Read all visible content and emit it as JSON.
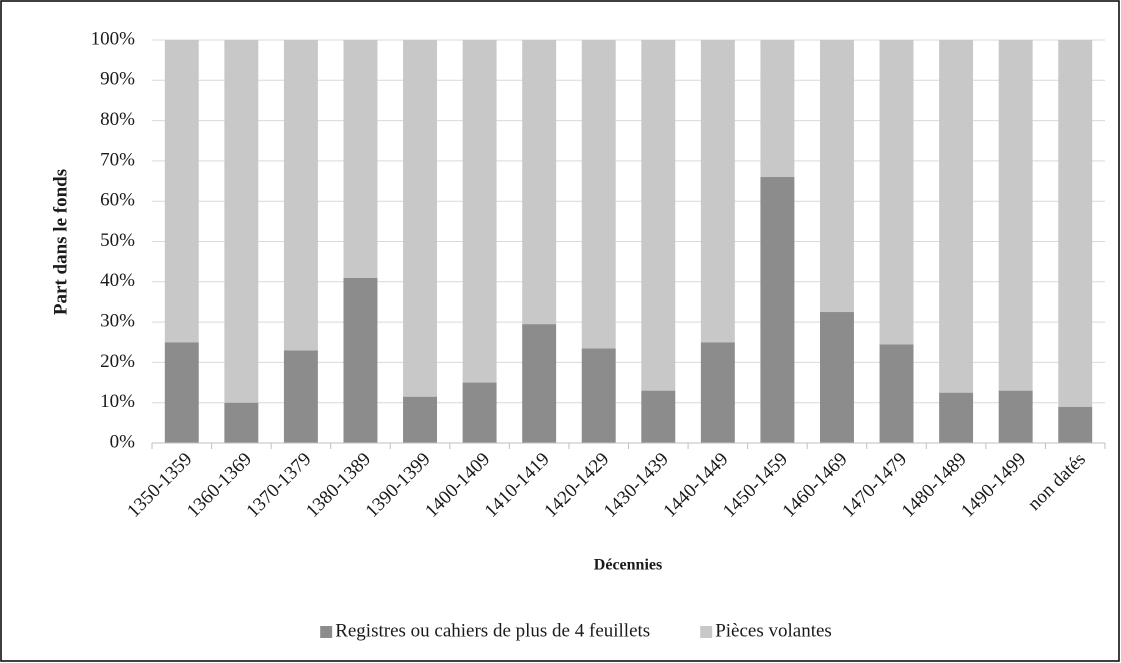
{
  "chart_data": {
    "type": "stacked_bar",
    "x_label": "Décennies",
    "y_label": "Part dans le fonds",
    "categories": [
      "1350-1359",
      "1360-1369",
      "1370-1379",
      "1380-1389",
      "1390-1399",
      "1400-1409",
      "1410-1419",
      "1420-1429",
      "1430-1439",
      "1440-1449",
      "1450-1459",
      "1460-1469",
      "1470-1479",
      "1480-1489",
      "1490-1499",
      "non datés"
    ],
    "series": [
      {
        "name": "Registres ou cahiers de plus de 4 feuillets",
        "color": "#8c8c8c",
        "values": [
          25,
          10,
          23,
          41,
          11.5,
          15,
          29.5,
          23.5,
          13,
          25,
          66,
          32.5,
          24.5,
          12.5,
          13,
          9
        ]
      },
      {
        "name": "Pièces volantes",
        "color": "#c8c8c8",
        "values": [
          75,
          90,
          77,
          59,
          88.5,
          85,
          70.5,
          76.5,
          87,
          75,
          34,
          67.5,
          75.5,
          87.5,
          87,
          91
        ]
      }
    ],
    "ylim": [
      0,
      100
    ],
    "yticks": [
      {
        "value": 0,
        "label": "0%"
      },
      {
        "value": 10,
        "label": "10%"
      },
      {
        "value": 20,
        "label": "20%"
      },
      {
        "value": 30,
        "label": "30%"
      },
      {
        "value": 40,
        "label": "40%"
      },
      {
        "value": 50,
        "label": "50%"
      },
      {
        "value": 60,
        "label": "60%"
      },
      {
        "value": 70,
        "label": "70%"
      },
      {
        "value": 80,
        "label": "80%"
      },
      {
        "value": 90,
        "label": "90%"
      },
      {
        "value": 100,
        "label": "100%"
      }
    ],
    "grid": true,
    "legend": "bottom"
  }
}
